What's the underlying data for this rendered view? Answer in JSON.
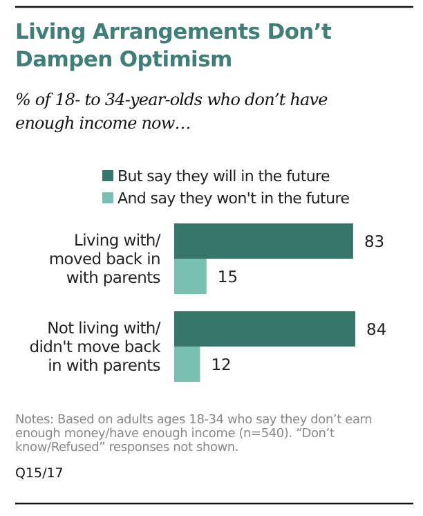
{
  "chart_data": {
    "type": "bar",
    "orientation": "horizontal",
    "title": "Living Arrangements Don’t Dampen Optimism",
    "subtitle": "% of 18- to 34-year-olds who don’t have enough income now…",
    "categories": [
      "Living with/ moved back in with parents",
      "Not living with/ didn't move back in with parents"
    ],
    "series": [
      {
        "name": "But say they will in the future",
        "color": "#36776a",
        "values": [
          83,
          84
        ]
      },
      {
        "name": "And say they won't in the future",
        "color": "#7ac0b0",
        "values": [
          15,
          12
        ]
      }
    ],
    "data_labels": true,
    "legend": "top",
    "annotations": [
      "Notes: Based on adults ages 18-34 who say they don’t earn enough money/have enough income (n=540).  “Don’t know/Refused” responses not shown.",
      "Q15/17"
    ]
  }
}
